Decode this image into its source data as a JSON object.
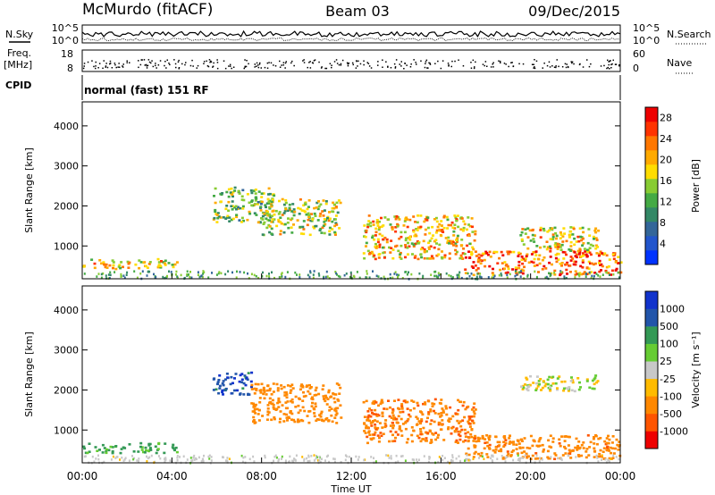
{
  "header": {
    "radar_title": "McMurdo (fitACF)",
    "beam": "Beam 03",
    "date": "09/Dec/2015"
  },
  "aux": {
    "nsky_label": "N.Sky",
    "nsearch_label": "N.Search",
    "freq_label_1": "Freq.",
    "freq_label_2": "[MHz]",
    "nave_label": "Nave",
    "cpid_label": "CPID",
    "cpid_text": "normal (fast) 151 RF",
    "noise_ticks_left": [
      "10^5",
      "10^0"
    ],
    "noise_ticks_right": [
      "10^5",
      "10^0"
    ],
    "freq_ticks": [
      "18",
      "8"
    ],
    "nave_ticks": [
      "60",
      "0"
    ]
  },
  "chart_data": [
    {
      "type": "heatmap",
      "title": "",
      "xlabel": "Time UT",
      "ylabel": "Slant Range [km]",
      "x_ticks": [
        "00:00",
        "04:00",
        "08:00",
        "12:00",
        "16:00",
        "20:00",
        "00:00"
      ],
      "y_ticks": [
        "1000",
        "2000",
        "3000",
        "4000"
      ],
      "xlim_hours": [
        0,
        24
      ],
      "ylim_km": [
        180,
        4600
      ],
      "colorbar": {
        "label": "Power [dB]",
        "ticks": [
          "4",
          "8",
          "12",
          "16",
          "20",
          "24",
          "28"
        ],
        "range": [
          0,
          30
        ],
        "colors": [
          "#0033ff",
          "#2255cc",
          "#336699",
          "#338866",
          "#44aa44",
          "#88cc33",
          "#ffdd00",
          "#ffaa00",
          "#ff7700",
          "#ff3300",
          "#ee0000"
        ]
      },
      "regions": [
        {
          "t0": 0.0,
          "t1": 4.2,
          "r0": 450,
          "r1": 700,
          "power": 18
        },
        {
          "t0": 5.8,
          "t1": 8.5,
          "r0": 1600,
          "r1": 2500,
          "power": 14
        },
        {
          "t0": 8.0,
          "t1": 11.5,
          "r0": 1300,
          "r1": 2200,
          "power": 16
        },
        {
          "t0": 12.5,
          "t1": 17.5,
          "r0": 700,
          "r1": 1800,
          "power": 20
        },
        {
          "t0": 17.0,
          "t1": 24.0,
          "r0": 300,
          "r1": 900,
          "power": 24
        },
        {
          "t0": 19.5,
          "t1": 23.0,
          "r0": 900,
          "r1": 1500,
          "power": 18
        }
      ]
    },
    {
      "type": "heatmap",
      "title": "",
      "xlabel": "Time UT",
      "ylabel": "Slant Range [km]",
      "x_ticks": [
        "00:00",
        "04:00",
        "08:00",
        "12:00",
        "16:00",
        "20:00",
        "00:00"
      ],
      "y_ticks": [
        "1000",
        "2000",
        "3000",
        "4000"
      ],
      "xlim_hours": [
        0,
        24
      ],
      "ylim_km": [
        180,
        4600
      ],
      "colorbar": {
        "label": "Velocity [m s⁻¹]",
        "ticks": [
          "1000",
          "500",
          "100",
          "25",
          "-25",
          "-100",
          "-500",
          "-1000"
        ],
        "colors": [
          "#ee0000",
          "#ff5500",
          "#ff8800",
          "#ffbb00",
          "#c8c8c8",
          "#66cc33",
          "#339955",
          "#2255aa",
          "#1133cc"
        ]
      },
      "regions": [
        {
          "t0": 0.0,
          "t1": 4.2,
          "r0": 450,
          "r1": 700,
          "velocity": 150
        },
        {
          "t0": 5.8,
          "t1": 7.5,
          "r0": 1900,
          "r1": 2500,
          "velocity": 800
        },
        {
          "t0": 7.5,
          "t1": 11.5,
          "r0": 1200,
          "r1": 2200,
          "velocity": -300
        },
        {
          "t0": 12.5,
          "t1": 17.5,
          "r0": 700,
          "r1": 1800,
          "velocity": -400
        },
        {
          "t0": 17.0,
          "t1": 24.0,
          "r0": 300,
          "r1": 900,
          "velocity": -350
        },
        {
          "t0": 19.5,
          "t1": 23.0,
          "r0": 2000,
          "r1": 2400,
          "velocity": 0
        }
      ]
    }
  ]
}
